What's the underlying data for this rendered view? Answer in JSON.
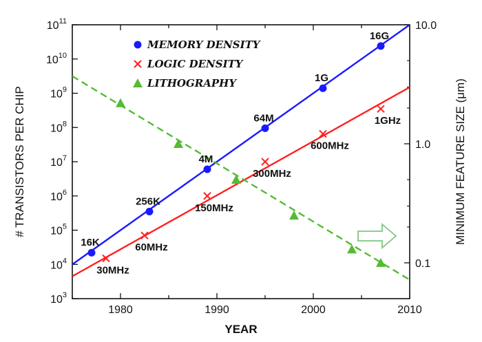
{
  "chart_data": {
    "type": "line",
    "xlabel": "YEAR",
    "ylabel_left": "# TRANSISTORS PER CHIP",
    "ylabel_right": "MINIMUM FEATURE SIZE (μm)",
    "xlim": [
      1975,
      2010
    ],
    "ylim_left": [
      1000,
      100000000000
    ],
    "ylim_right": [
      0.05,
      10
    ],
    "y_scale": "log",
    "x_ticks": [
      {
        "value": 1980,
        "label": "1980"
      },
      {
        "value": 1990,
        "label": "1990"
      },
      {
        "value": 2000,
        "label": "2000"
      },
      {
        "value": 2010,
        "label": "2010"
      }
    ],
    "y_left_ticks": [
      {
        "exp": 3,
        "base": "10",
        "sup": "3"
      },
      {
        "exp": 4,
        "base": "10",
        "sup": "4"
      },
      {
        "exp": 5,
        "base": "10",
        "sup": "5"
      },
      {
        "exp": 6,
        "base": "10",
        "sup": "6"
      },
      {
        "exp": 7,
        "base": "10",
        "sup": "7"
      },
      {
        "exp": 8,
        "base": "10",
        "sup": "8"
      },
      {
        "exp": 9,
        "base": "10",
        "sup": "9"
      },
      {
        "exp": 10,
        "base": "10",
        "sup": "10"
      },
      {
        "exp": 11,
        "base": "10",
        "sup": "11"
      }
    ],
    "y_right_ticks": [
      {
        "value": 10,
        "label": "10.0"
      },
      {
        "value": 1,
        "label": "1.0"
      },
      {
        "value": 0.1,
        "label": "0.1"
      }
    ],
    "legend": {
      "position": "top-left",
      "entries": [
        "MEMORY DENSITY",
        "LOGIC DENSITY",
        "LITHOGRAPHY"
      ]
    },
    "series": [
      {
        "name": "MEMORY DENSITY",
        "axis": "left",
        "color": "#1a1aff",
        "marker": "circle",
        "line_style": "solid",
        "trend": {
          "x": [
            1975,
            2010
          ],
          "y": [
            10000,
            100000000000
          ]
        },
        "points": [
          {
            "x": 1977,
            "y": 22000,
            "label": "16K"
          },
          {
            "x": 1983,
            "y": 350000,
            "label": "256K"
          },
          {
            "x": 1989,
            "y": 6000000,
            "label": "4M"
          },
          {
            "x": 1995,
            "y": 95000000,
            "label": "64M"
          },
          {
            "x": 2001,
            "y": 1400000000,
            "label": "1G"
          },
          {
            "x": 2007,
            "y": 24000000000,
            "label": "16G"
          }
        ]
      },
      {
        "name": "LOGIC DENSITY",
        "axis": "left",
        "color": "#ff2020",
        "marker": "x",
        "line_style": "solid",
        "trend": {
          "x": [
            1975,
            2010
          ],
          "y": [
            4500,
            1500000000
          ]
        },
        "points": [
          {
            "x": 1978.5,
            "y": 15000,
            "label": "30MHz"
          },
          {
            "x": 1982.5,
            "y": 70000,
            "label": "60MHz"
          },
          {
            "x": 1989,
            "y": 1000000,
            "label": "150MHz"
          },
          {
            "x": 1995,
            "y": 10000000,
            "label": "300MHz"
          },
          {
            "x": 2001,
            "y": 65000000,
            "label": "600MHz"
          },
          {
            "x": 2007,
            "y": 350000000,
            "label": "1GHz"
          }
        ]
      },
      {
        "name": "LITHOGRAPHY",
        "axis": "right",
        "color": "#55bb33",
        "marker": "triangle",
        "line_style": "dashed",
        "trend": {
          "x": [
            1975,
            2010
          ],
          "y": [
            3.7,
            0.072
          ]
        },
        "points": [
          {
            "x": 1980,
            "y": 2.2
          },
          {
            "x": 1986,
            "y": 1.0
          },
          {
            "x": 1992,
            "y": 0.5
          },
          {
            "x": 1998,
            "y": 0.25
          },
          {
            "x": 2004,
            "y": 0.13
          },
          {
            "x": 2007,
            "y": 0.1
          }
        ]
      }
    ]
  }
}
